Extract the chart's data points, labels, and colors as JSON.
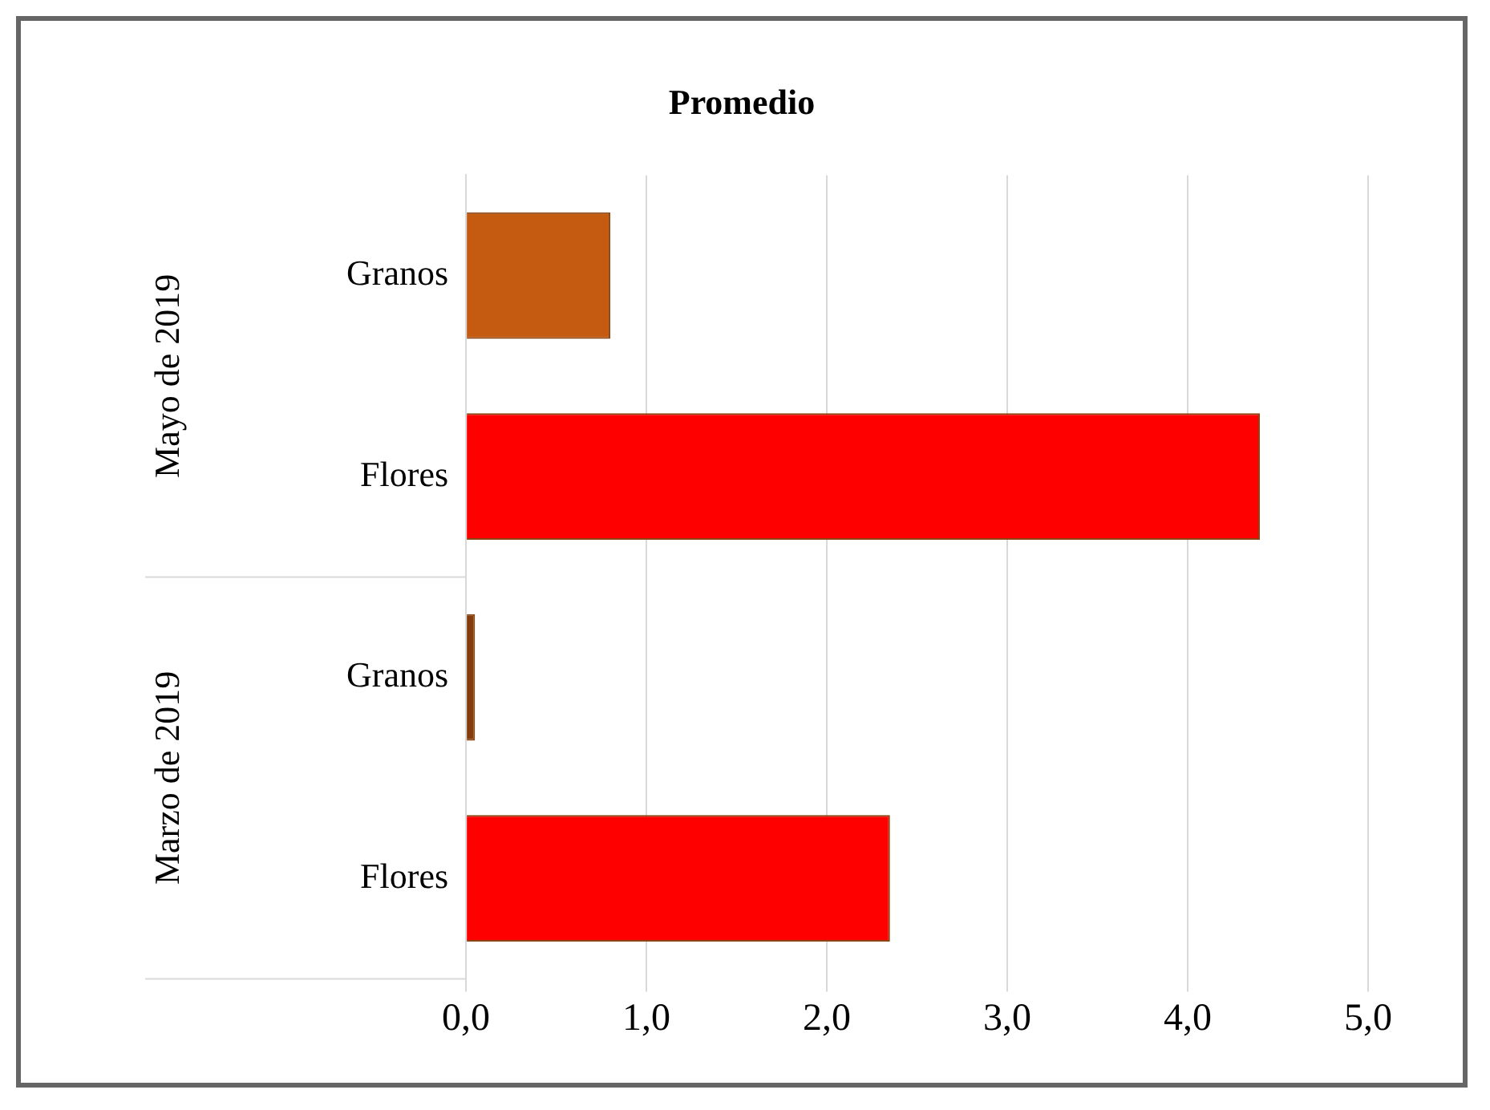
{
  "chart_data": {
    "type": "bar",
    "title": "Promedio",
    "orientation": "horizontal",
    "categories": [
      "Granos",
      "Flores",
      "Granos",
      "Flores"
    ],
    "values": [
      0.8,
      4.4,
      0.05,
      2.35
    ],
    "colors": [
      "#c55a11",
      "#ff0000",
      "#843c0c",
      "#ff0000"
    ],
    "annotations": [
      "Mayo de 2019",
      "Marzo de 2019"
    ],
    "xlim": [
      0,
      5
    ],
    "xticks": [
      {
        "value": 0,
        "label": "0,0"
      },
      {
        "value": 1,
        "label": "1,0"
      },
      {
        "value": 2,
        "label": "2,0"
      },
      {
        "value": 3,
        "label": "3,0"
      },
      {
        "value": 4,
        "label": "4,0"
      },
      {
        "value": 5,
        "label": "5,0"
      }
    ],
    "grid": "x",
    "legend": false
  }
}
